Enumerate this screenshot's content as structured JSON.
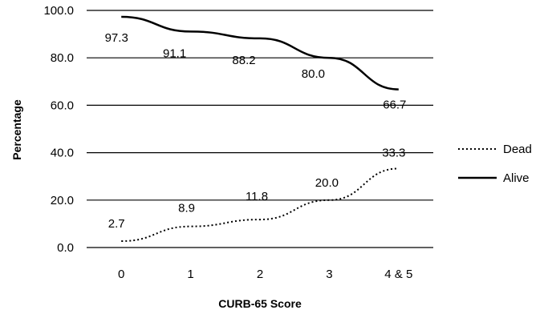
{
  "chart_data": {
    "type": "line",
    "title": "",
    "xlabel": "CURB-65 Score",
    "ylabel": "Percentage",
    "categories": [
      "0",
      "1",
      "2",
      "3",
      "4 & 5"
    ],
    "ylim": [
      0,
      100
    ],
    "y_ticks": [
      "0.0",
      "20.0",
      "40.0",
      "60.0",
      "80.0",
      "100.0"
    ],
    "grid": true,
    "legend_position": "right",
    "series": [
      {
        "name": "Dead",
        "style": "dotted",
        "values": [
          2.7,
          8.9,
          11.8,
          20.0,
          33.3
        ],
        "labels": [
          "2.7",
          "8.9",
          "11.8",
          "20.0",
          "33.3"
        ]
      },
      {
        "name": "Alive",
        "style": "solid",
        "values": [
          97.3,
          91.1,
          88.2,
          80.0,
          66.7
        ],
        "labels": [
          "97.3",
          "91.1",
          "88.2",
          "80.0",
          "66.7"
        ]
      }
    ]
  }
}
